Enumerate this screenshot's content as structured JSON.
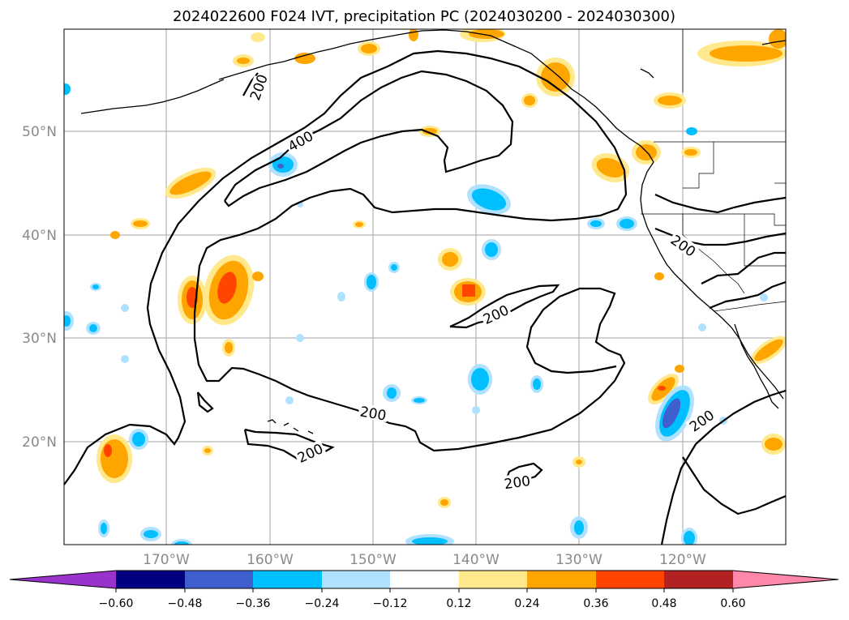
{
  "title": "2024022600 F024 IVT, precipitation PC (2024030200 - 2024030300)",
  "map": {
    "lon_labels": [
      "170°W",
      "160°W",
      "150°W",
      "140°W",
      "130°W",
      "120°W"
    ],
    "lat_labels": [
      "50°N",
      "40°N",
      "30°N",
      "20°N"
    ],
    "contour_labels": [
      "400",
      "200",
      "200",
      "200",
      "200",
      "200",
      "200",
      "200"
    ],
    "contour_levels": [
      200,
      400
    ],
    "grid": true
  },
  "colorbar": {
    "tick_labels": [
      "−0.60",
      "−0.48",
      "−0.36",
      "−0.24",
      "−0.12",
      "0.12",
      "0.24",
      "0.36",
      "0.48",
      "0.60"
    ],
    "colors": [
      "#9933cc",
      "#000080",
      "#3f5fcf",
      "#00bfff",
      "#b0e2ff",
      "#ffffff",
      "#ffe98c",
      "#ffa500",
      "#ff4500",
      "#b22222",
      "#ff88aa"
    ],
    "extend": "both"
  }
}
